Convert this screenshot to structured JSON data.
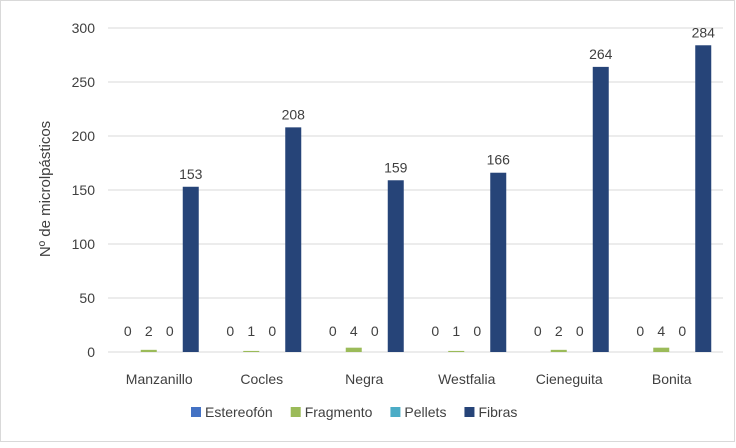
{
  "chart_data": {
    "type": "bar",
    "title": "",
    "xlabel": "",
    "ylabel": "Nº de microlpásticos",
    "ylim": [
      0,
      300
    ],
    "yticks": [
      0,
      50,
      100,
      150,
      200,
      250,
      300
    ],
    "grid": true,
    "legend_position": "bottom",
    "categories": [
      "Manzanillo",
      "Cocles",
      "Negra",
      "Westfalia",
      "Cieneguita",
      "Bonita"
    ],
    "series": [
      {
        "name": "Estereofón",
        "color": "#4472c4",
        "values": [
          0,
          0,
          0,
          0,
          0,
          0
        ]
      },
      {
        "name": "Fragmento",
        "color": "#9bbb59",
        "values": [
          2,
          1,
          4,
          1,
          2,
          4
        ]
      },
      {
        "name": "Pellets",
        "color": "#4bacc6",
        "values": [
          0,
          0,
          0,
          0,
          0,
          0
        ]
      },
      {
        "name": "Fibras",
        "color": "#264478",
        "values": [
          153,
          208,
          159,
          166,
          264,
          284
        ]
      }
    ]
  }
}
